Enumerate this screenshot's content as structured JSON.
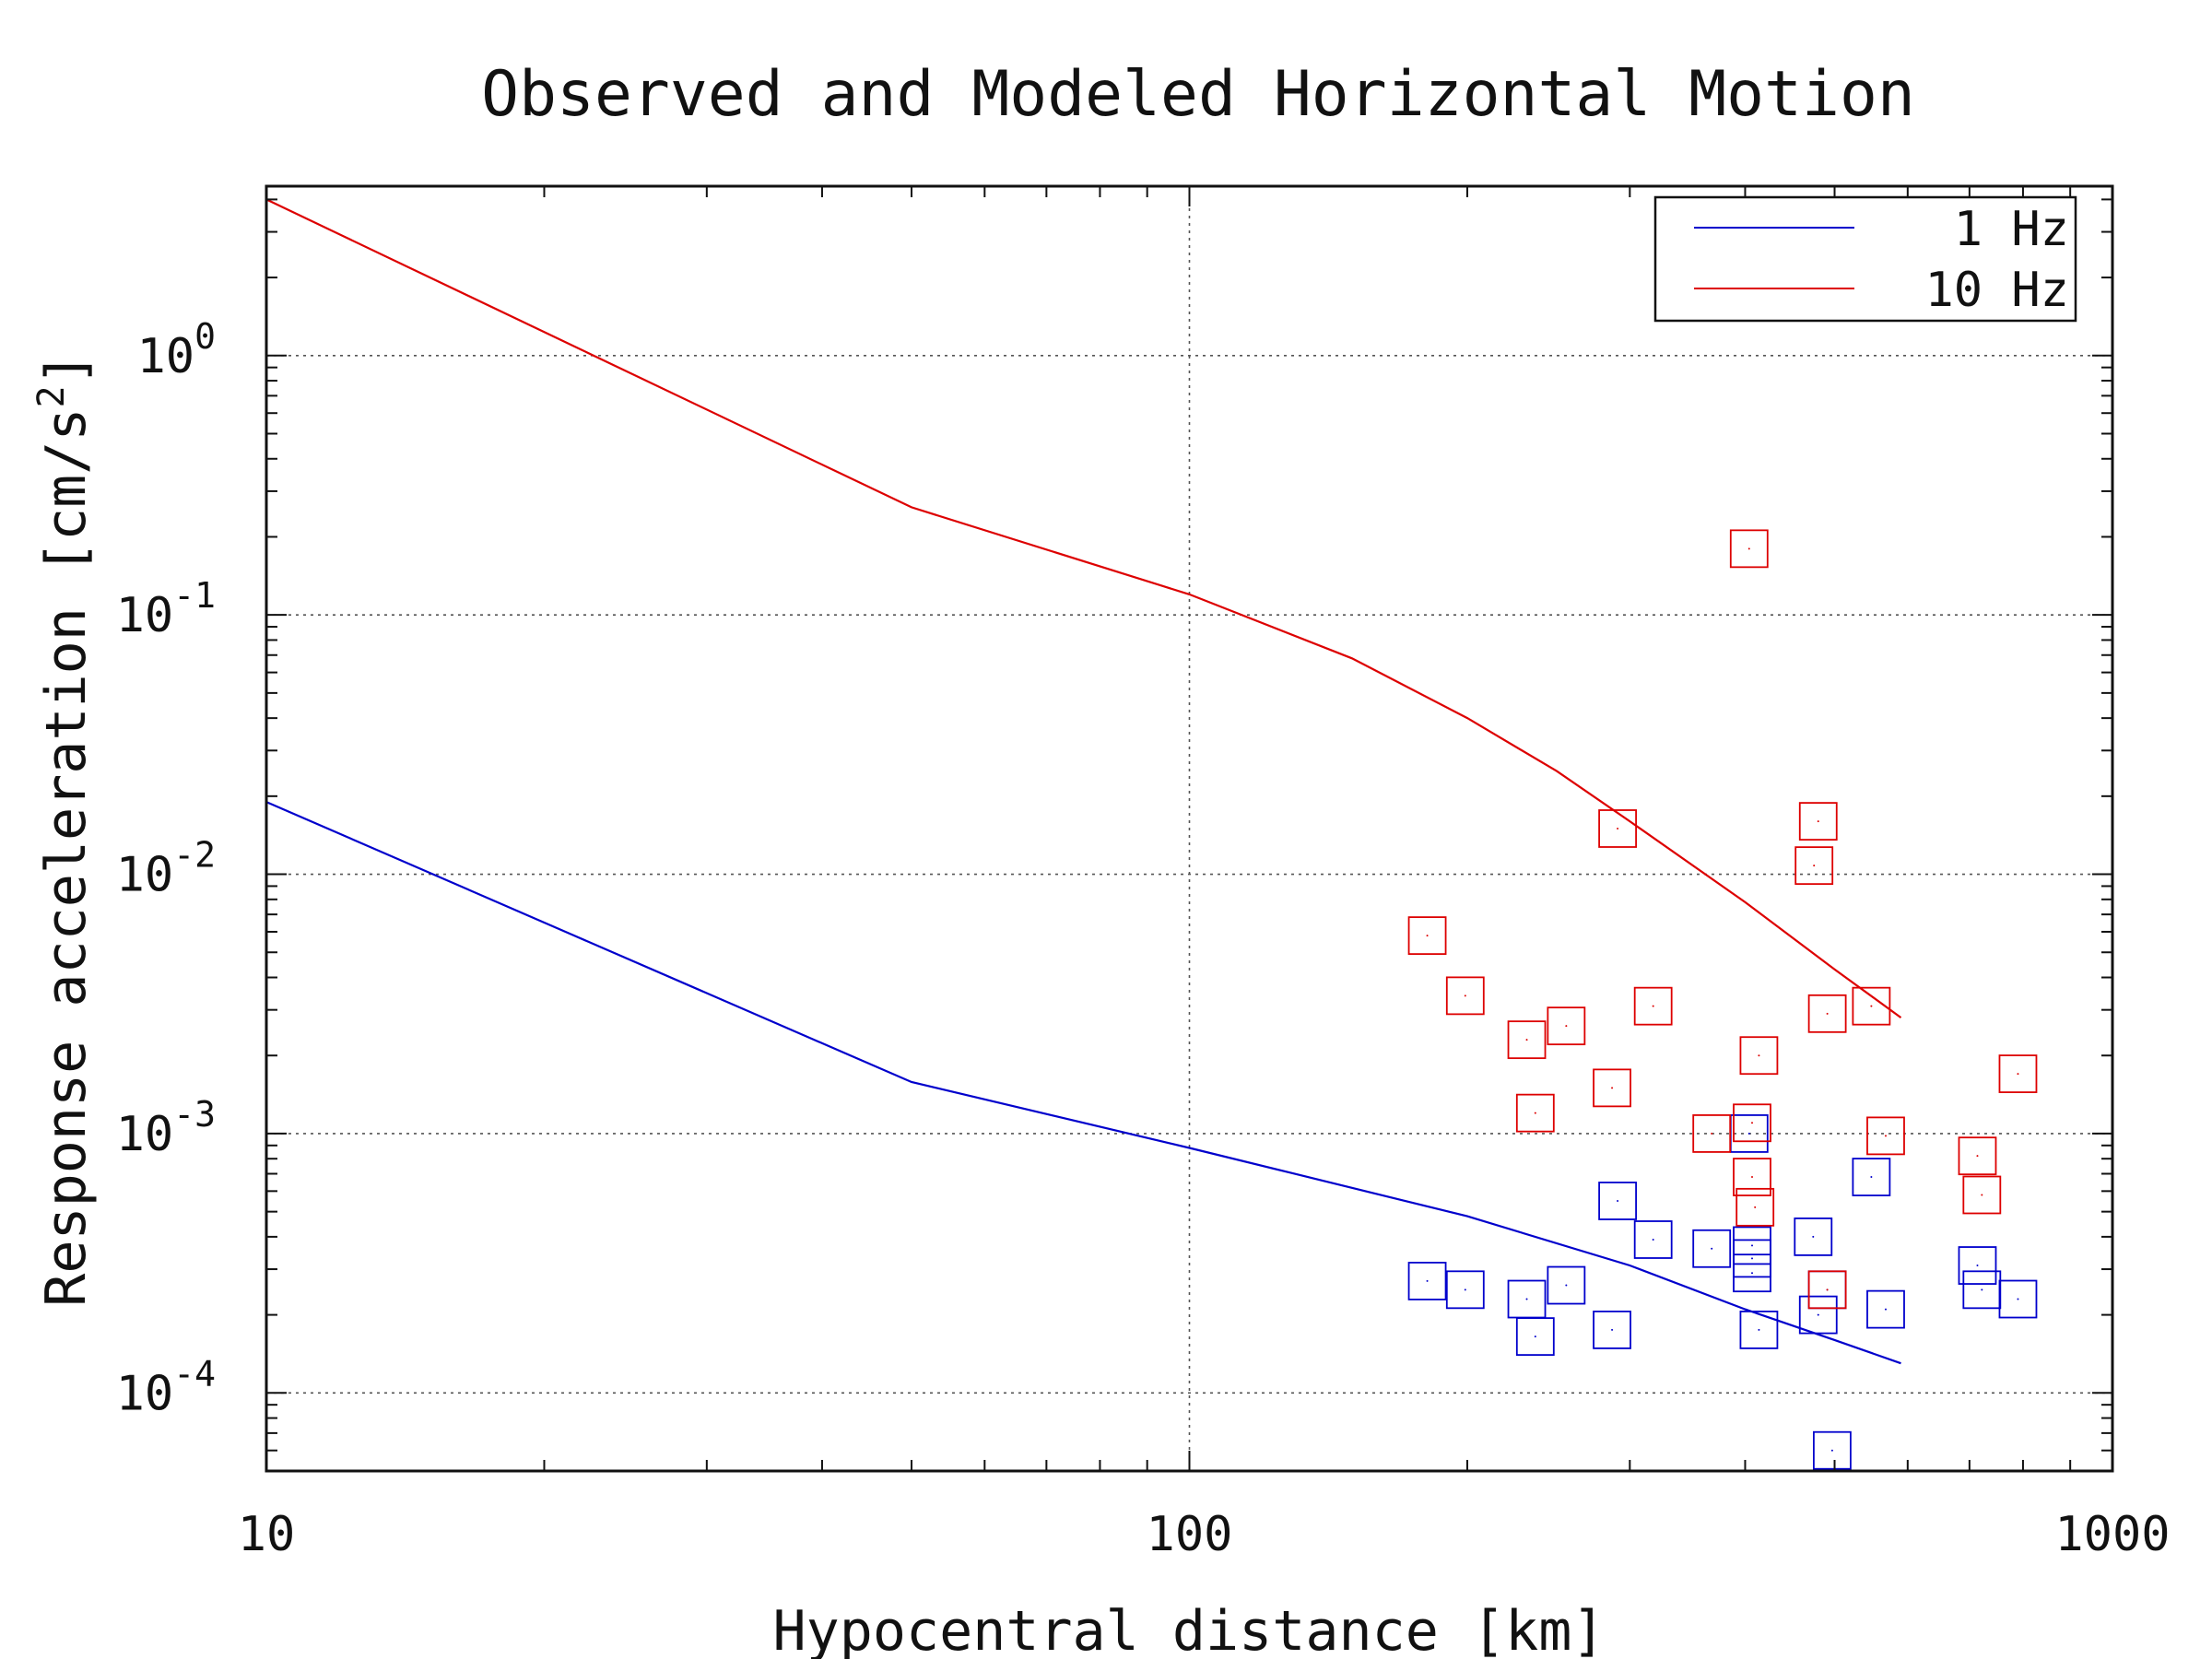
{
  "chart_data": {
    "type": "scatter",
    "title": "Observed and Modeled Horizontal Motion",
    "xlabel": "Hypocentral distance [km]",
    "ylabel": "Response acceleration [cm/s²]",
    "ylabel_parts": {
      "base": "Response acceleration [cm/s",
      "sup": "2",
      "tail": "]"
    },
    "xscale": "log",
    "yscale": "log",
    "xlim": [
      10,
      1000
    ],
    "ylim": [
      5e-05,
      4.5
    ],
    "x_ticks": [
      {
        "value": 10,
        "label": "10"
      },
      {
        "value": 100,
        "label": "100"
      },
      {
        "value": 1000,
        "label": "1000"
      }
    ],
    "y_ticks": [
      {
        "value": 0.0001,
        "base": "10",
        "exp": "-4"
      },
      {
        "value": 0.001,
        "base": "10",
        "exp": "-3"
      },
      {
        "value": 0.01,
        "base": "10",
        "exp": "-2"
      },
      {
        "value": 0.1,
        "base": "10",
        "exp": "-1"
      },
      {
        "value": 1,
        "base": "10",
        "exp": "0"
      }
    ],
    "grid": true,
    "legend_position": "top-right",
    "series": [
      {
        "name": "1 Hz",
        "kind": "line",
        "color": "#0000cc",
        "points": [
          [
            10,
            0.019
          ],
          [
            50,
            0.00158
          ],
          [
            100,
            0.00088
          ],
          [
            200,
            0.00048
          ],
          [
            300,
            0.00031
          ],
          [
            400,
            0.00021
          ],
          [
            500,
            0.00016
          ],
          [
            590,
            0.00013
          ]
        ]
      },
      {
        "name": "10 Hz",
        "kind": "line",
        "color": "#dd0000",
        "points": [
          [
            10,
            4.0
          ],
          [
            50,
            0.26
          ],
          [
            100,
            0.12
          ],
          [
            150,
            0.068
          ],
          [
            200,
            0.04
          ],
          [
            250,
            0.025
          ],
          [
            300,
            0.016
          ],
          [
            400,
            0.0078
          ],
          [
            500,
            0.0043
          ],
          [
            590,
            0.0028
          ]
        ]
      },
      {
        "name": "",
        "kind": "markers",
        "marker": "square",
        "color": "#0000cc",
        "points": [
          [
            181,
            0.00027
          ],
          [
            199,
            0.00025
          ],
          [
            232,
            0.00023
          ],
          [
            237,
            0.000165
          ],
          [
            256,
            0.00026
          ],
          [
            287,
            0.000175
          ],
          [
            291,
            0.00055
          ],
          [
            318,
            0.00039
          ],
          [
            368,
            0.00036
          ],
          [
            404,
            0.001
          ],
          [
            407,
            0.00037
          ],
          [
            407,
            0.00033
          ],
          [
            407,
            0.00029
          ],
          [
            414,
            0.000175
          ],
          [
            474,
            0.0004
          ],
          [
            480,
            0.0002
          ],
          [
            491,
            0.00025
          ],
          [
            497,
            6e-05
          ],
          [
            548,
            0.00068
          ],
          [
            568,
            0.00021
          ],
          [
            714,
            0.00031
          ],
          [
            722,
            0.00025
          ],
          [
            790,
            0.00023
          ]
        ]
      },
      {
        "name": "",
        "kind": "markers",
        "marker": "square",
        "color": "#dd0000",
        "points": [
          [
            181,
            0.0058
          ],
          [
            199,
            0.0034
          ],
          [
            232,
            0.0023
          ],
          [
            237,
            0.0012
          ],
          [
            256,
            0.0026
          ],
          [
            287,
            0.0015
          ],
          [
            291,
            0.015
          ],
          [
            318,
            0.0031
          ],
          [
            368,
            0.001
          ],
          [
            404,
            0.18
          ],
          [
            407,
            0.0011
          ],
          [
            407,
            0.00068
          ],
          [
            410,
            0.00052
          ],
          [
            414,
            0.002
          ],
          [
            480,
            0.016
          ],
          [
            475,
            0.0108
          ],
          [
            491,
            0.0029
          ],
          [
            491,
            0.00025
          ],
          [
            548,
            0.0031
          ],
          [
            568,
            0.00098
          ],
          [
            714,
            0.00082
          ],
          [
            722,
            0.00058
          ],
          [
            790,
            0.0017
          ]
        ]
      }
    ]
  }
}
